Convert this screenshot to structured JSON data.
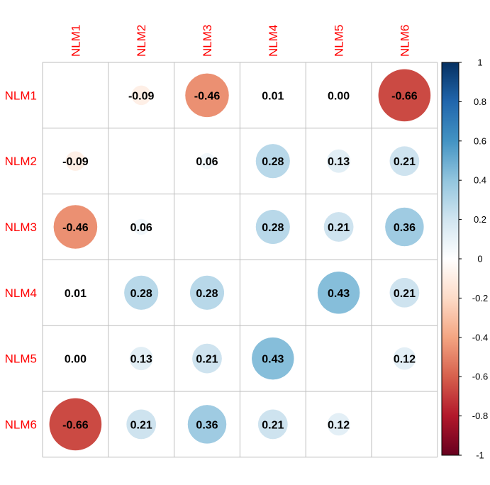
{
  "chart_data": {
    "type": "heatmap",
    "variables": [
      "NLM1",
      "NLM2",
      "NLM3",
      "NLM4",
      "NLM5",
      "NLM6"
    ],
    "matrix": [
      [
        null,
        -0.09,
        -0.46,
        0.01,
        0.0,
        -0.66
      ],
      [
        -0.09,
        null,
        0.06,
        0.28,
        0.13,
        0.21
      ],
      [
        -0.46,
        0.06,
        null,
        0.28,
        0.21,
        0.36
      ],
      [
        0.01,
        0.28,
        0.28,
        null,
        0.43,
        0.21
      ],
      [
        0.0,
        0.13,
        0.21,
        0.43,
        null,
        0.12
      ],
      [
        -0.66,
        0.21,
        0.36,
        0.21,
        0.12,
        null
      ]
    ],
    "labels": [
      [
        "",
        "-0.09",
        "-0.46",
        "0.01",
        "0.00",
        "-0.66"
      ],
      [
        "-0.09",
        "",
        "0.06",
        "0.28",
        "0.13",
        "0.21"
      ],
      [
        "-0.46",
        "0.06",
        "",
        "0.28",
        "0.21",
        "0.36"
      ],
      [
        "0.01",
        "0.28",
        "0.28",
        "",
        "0.43",
        "0.21"
      ],
      [
        "0.00",
        "0.13",
        "0.21",
        "0.43",
        "",
        "0.12"
      ],
      [
        "-0.66",
        "0.21",
        "0.36",
        "0.21",
        "0.12",
        ""
      ]
    ],
    "color_scale": {
      "range": [
        -1,
        1
      ],
      "ticks": [
        1,
        0.8,
        0.6,
        0.4,
        0.2,
        0,
        -0.2,
        -0.4,
        -0.6,
        -0.8,
        -1
      ],
      "tick_labels": [
        "1",
        "0.8",
        "0.6",
        "0.4",
        "0.2",
        "0",
        "-0.2",
        "-0.4",
        "-0.6",
        "-0.8",
        "-1"
      ],
      "colors": [
        "#67001F",
        "#B2182B",
        "#D6604D",
        "#F4A582",
        "#FDDBC7",
        "#FFFFFF",
        "#D1E5F0",
        "#92C5DE",
        "#4393C3",
        "#2166AC",
        "#053061"
      ]
    },
    "label_color": "#ff0000",
    "grid": true,
    "legend": "right"
  }
}
